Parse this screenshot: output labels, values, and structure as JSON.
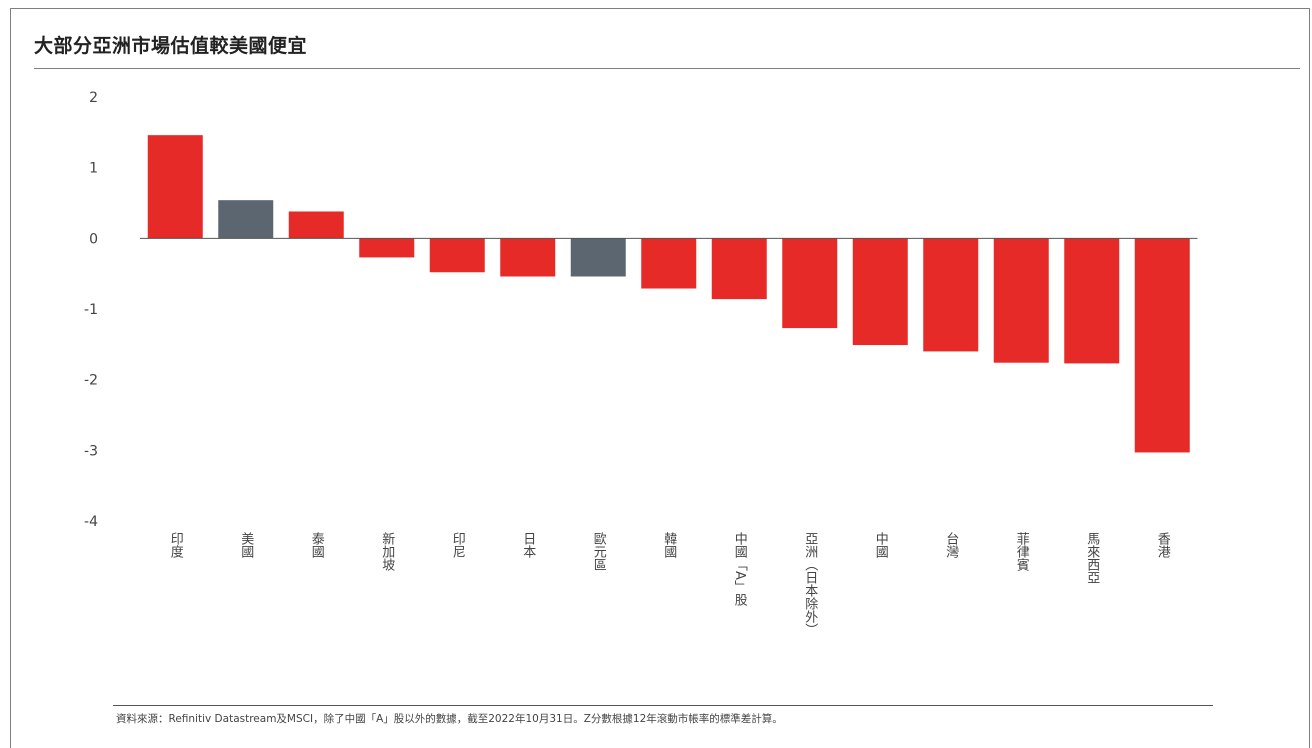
{
  "title": "大部分亞洲市場估值較美國便宜",
  "source": "資料來源：Refinitiv Datastream及MSCI，除了中國「A」股以外的數據，截至2022年10月31日。Z分數根據12年滾動市帳率的標準差計算。",
  "colors": {
    "asia": "#e52a27",
    "reference": "#5c6670",
    "axis": "#555555",
    "text": "#444444"
  },
  "chart_data": {
    "type": "bar",
    "title": "大部分亞洲市場估值較美國便宜",
    "xlabel": "",
    "ylabel": "",
    "ylim": [
      -4,
      2
    ],
    "yticks": [
      2,
      1,
      0,
      -1,
      -2,
      -3,
      -4
    ],
    "grid": false,
    "legend": "none",
    "categories": [
      "印度",
      "美國",
      "泰國",
      "新加坡",
      "印尼",
      "日本",
      "歐元區",
      "韓國",
      "中國「A」股",
      "亞洲（日本除外）",
      "中國",
      "台灣",
      "菲律賓",
      "馬來西亞",
      "香港"
    ],
    "values": [
      1.46,
      0.54,
      0.38,
      -0.27,
      -0.48,
      -0.54,
      -0.54,
      -0.71,
      -0.86,
      -1.27,
      -1.51,
      -1.6,
      -1.76,
      -1.77,
      -3.03
    ],
    "bar_colors": [
      "#e52a27",
      "#5c6670",
      "#e52a27",
      "#e52a27",
      "#e52a27",
      "#e52a27",
      "#5c6670",
      "#e52a27",
      "#e52a27",
      "#e52a27",
      "#e52a27",
      "#e52a27",
      "#e52a27",
      "#e52a27",
      "#e52a27"
    ]
  }
}
